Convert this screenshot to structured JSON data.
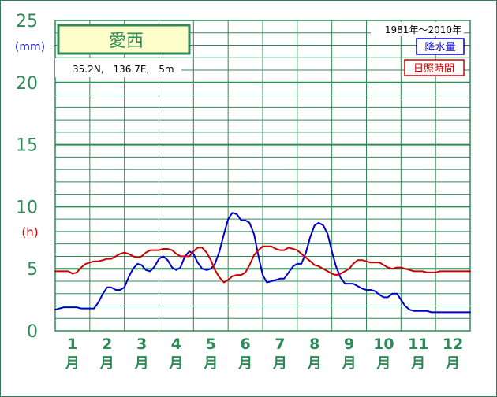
{
  "chart_data": {
    "type": "line",
    "title": "愛西",
    "location": "35.2N,　136.7E,　5m",
    "period": "1981年〜2010年",
    "y_units": {
      "precip": "(mm)",
      "sun": "(h)"
    },
    "y_ticks": [
      "0",
      "5",
      "10",
      "15",
      "20",
      "25"
    ],
    "ylim": [
      0,
      25
    ],
    "x_range": [
      0.5,
      12.5
    ],
    "months": [
      "1",
      "2",
      "3",
      "4",
      "5",
      "6",
      "7",
      "8",
      "9",
      "10",
      "11",
      "12"
    ],
    "month_unit": "月",
    "grid": true,
    "legend_position": "top-right",
    "series": [
      {
        "name": "降水量",
        "color": "#0000cc",
        "x": [
          0.5,
          0.62,
          0.75,
          0.88,
          1.0,
          1.12,
          1.25,
          1.38,
          1.5,
          1.62,
          1.75,
          1.88,
          2.0,
          2.12,
          2.25,
          2.38,
          2.5,
          2.62,
          2.75,
          2.88,
          3.0,
          3.12,
          3.25,
          3.38,
          3.5,
          3.62,
          3.75,
          3.88,
          4.0,
          4.12,
          4.25,
          4.38,
          4.5,
          4.62,
          4.75,
          4.88,
          5.0,
          5.12,
          5.25,
          5.38,
          5.5,
          5.62,
          5.75,
          5.88,
          6.0,
          6.12,
          6.25,
          6.38,
          6.5,
          6.62,
          6.75,
          6.88,
          7.0,
          7.12,
          7.25,
          7.38,
          7.5,
          7.62,
          7.75,
          7.88,
          8.0,
          8.12,
          8.25,
          8.38,
          8.5,
          8.62,
          8.75,
          8.88,
          9.0,
          9.12,
          9.25,
          9.38,
          9.5,
          9.62,
          9.75,
          9.88,
          10.0,
          10.12,
          10.25,
          10.38,
          10.5,
          10.62,
          10.75,
          10.88,
          11.0,
          11.12,
          11.25,
          11.38,
          11.5,
          11.62,
          11.75,
          11.88,
          12.0,
          12.12,
          12.25,
          12.38,
          12.5
        ],
        "values": [
          1.7,
          1.8,
          1.9,
          1.9,
          1.9,
          1.9,
          1.8,
          1.8,
          1.8,
          1.8,
          2.3,
          3.0,
          3.5,
          3.5,
          3.3,
          3.3,
          3.5,
          4.3,
          5.0,
          5.4,
          5.3,
          4.9,
          4.8,
          5.2,
          5.8,
          6.0,
          5.7,
          5.1,
          4.9,
          5.1,
          6.0,
          6.4,
          6.2,
          5.5,
          5.0,
          4.9,
          5.0,
          5.4,
          6.4,
          7.8,
          9.0,
          9.5,
          9.4,
          8.9,
          8.9,
          8.7,
          7.8,
          6.0,
          4.5,
          3.9,
          4.0,
          4.1,
          4.2,
          4.2,
          4.7,
          5.2,
          5.4,
          5.4,
          6.3,
          7.6,
          8.5,
          8.7,
          8.5,
          7.8,
          6.4,
          5.2,
          4.3,
          3.8,
          3.8,
          3.8,
          3.6,
          3.4,
          3.3,
          3.3,
          3.2,
          2.9,
          2.7,
          2.7,
          3.0,
          3.0,
          2.5,
          2.0,
          1.7,
          1.6,
          1.6,
          1.6,
          1.6,
          1.5,
          1.5,
          1.5,
          1.5,
          1.5,
          1.5,
          1.5,
          1.5,
          1.5,
          1.5
        ]
      },
      {
        "name": "日照時間",
        "color": "#cc0000",
        "x": [
          0.5,
          0.62,
          0.75,
          0.88,
          1.0,
          1.12,
          1.25,
          1.38,
          1.5,
          1.62,
          1.75,
          1.88,
          2.0,
          2.12,
          2.25,
          2.38,
          2.5,
          2.62,
          2.75,
          2.88,
          3.0,
          3.12,
          3.25,
          3.38,
          3.5,
          3.62,
          3.75,
          3.88,
          4.0,
          4.12,
          4.25,
          4.38,
          4.5,
          4.62,
          4.75,
          4.88,
          5.0,
          5.12,
          5.25,
          5.38,
          5.5,
          5.62,
          5.75,
          5.88,
          6.0,
          6.12,
          6.25,
          6.38,
          6.5,
          6.62,
          6.75,
          6.88,
          7.0,
          7.12,
          7.25,
          7.38,
          7.5,
          7.62,
          7.75,
          7.88,
          8.0,
          8.12,
          8.25,
          8.38,
          8.5,
          8.62,
          8.75,
          8.88,
          9.0,
          9.12,
          9.25,
          9.38,
          9.5,
          9.62,
          9.75,
          9.88,
          10.0,
          10.12,
          10.25,
          10.38,
          10.5,
          10.62,
          10.75,
          10.88,
          11.0,
          11.12,
          11.25,
          11.38,
          11.5,
          11.62,
          11.75,
          11.88,
          12.0,
          12.12,
          12.25,
          12.38,
          12.5
        ],
        "values": [
          4.8,
          4.8,
          4.8,
          4.8,
          4.6,
          4.7,
          5.1,
          5.4,
          5.5,
          5.6,
          5.6,
          5.7,
          5.8,
          5.8,
          6.0,
          6.2,
          6.3,
          6.2,
          6.0,
          5.9,
          6.0,
          6.3,
          6.5,
          6.5,
          6.5,
          6.6,
          6.6,
          6.5,
          6.2,
          6.0,
          6.0,
          6.0,
          6.4,
          6.7,
          6.7,
          6.3,
          5.7,
          4.9,
          4.3,
          3.9,
          4.1,
          4.4,
          4.5,
          4.5,
          4.7,
          5.3,
          6.1,
          6.5,
          6.8,
          6.8,
          6.8,
          6.6,
          6.5,
          6.5,
          6.7,
          6.6,
          6.5,
          6.2,
          5.9,
          5.6,
          5.3,
          5.2,
          5.0,
          4.8,
          4.6,
          4.5,
          4.6,
          4.8,
          5.0,
          5.4,
          5.7,
          5.7,
          5.6,
          5.5,
          5.5,
          5.5,
          5.3,
          5.1,
          5.0,
          5.1,
          5.1,
          5.0,
          4.9,
          4.8,
          4.8,
          4.8,
          4.7,
          4.7,
          4.7,
          4.8,
          4.8,
          4.8,
          4.8,
          4.8,
          4.8,
          4.8,
          4.8
        ]
      }
    ]
  }
}
